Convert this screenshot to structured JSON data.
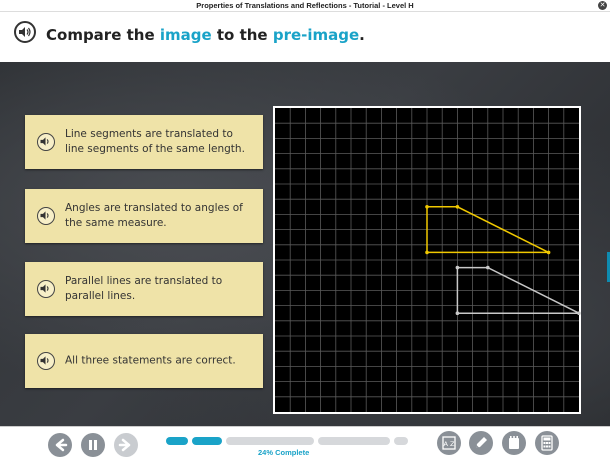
{
  "window": {
    "title": "Properties of Translations and Reflections - Tutorial - Level H"
  },
  "header": {
    "prompt_before": "Compare the ",
    "prompt_image": "image",
    "prompt_middle": " to the ",
    "prompt_preimage": "pre-image",
    "prompt_end": ".",
    "accent_color": "#1aa3c8"
  },
  "choices": [
    {
      "text": "Line segments are translated to line segments of the same length."
    },
    {
      "text": "Angles are translated to angles of the same measure."
    },
    {
      "text": "Parallel lines are translated to parallel lines."
    },
    {
      "text": "All three statements are correct."
    }
  ],
  "graph": {
    "cells": 20,
    "image_color": "#f0c800",
    "preimage_color": "#c8c8c8",
    "image_vertices": [
      [
        10,
        6.5
      ],
      [
        12,
        6.5
      ],
      [
        18,
        9.5
      ],
      [
        10,
        9.5
      ]
    ],
    "preimage_vertices": [
      [
        12,
        10.5
      ],
      [
        14,
        10.5
      ],
      [
        20,
        13.5
      ],
      [
        12,
        13.5
      ]
    ]
  },
  "footer": {
    "progress_label": "24% Complete",
    "progress_percent": 24
  }
}
